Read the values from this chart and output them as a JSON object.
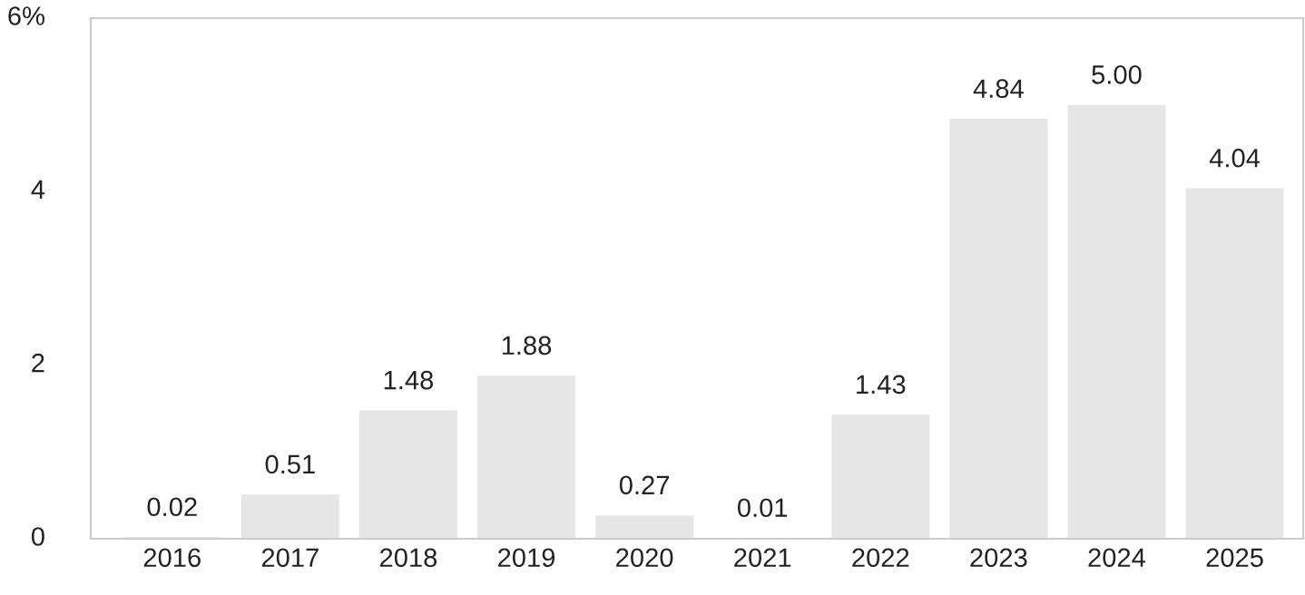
{
  "chart_data": {
    "type": "bar",
    "categories": [
      "2016",
      "2017",
      "2018",
      "2019",
      "2020",
      "2021",
      "2022",
      "2023",
      "2024",
      "2025"
    ],
    "values": [
      0.02,
      0.51,
      1.48,
      1.88,
      0.27,
      0.01,
      1.43,
      4.84,
      5.0,
      4.04
    ],
    "value_labels": [
      "0.02",
      "0.51",
      "1.48",
      "1.88",
      "0.27",
      "0.01",
      "1.43",
      "4.84",
      "5.00",
      "4.04"
    ],
    "color": "#e6e6e6",
    "ylim": [
      0,
      6
    ],
    "yticks": [
      0,
      2,
      4,
      {
        "value": 6,
        "label": "6%"
      }
    ],
    "grid": false,
    "legend": false
  }
}
